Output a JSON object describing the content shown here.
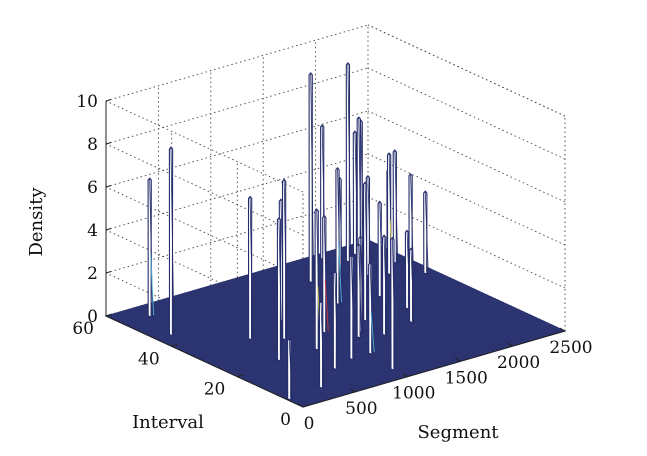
{
  "chart_data": {
    "type": "surface-3d",
    "title": "",
    "xlabel": "Segment",
    "ylabel": "Interval",
    "zlabel": "Density",
    "xlim": [
      0,
      2500
    ],
    "ylim": [
      0,
      60
    ],
    "zlim": [
      0,
      10
    ],
    "xticks": [
      "0",
      "500",
      "1000",
      "1500",
      "2000",
      "2500"
    ],
    "yticks": [
      "0",
      "20",
      "40",
      "60"
    ],
    "zticks": [
      "0",
      "2",
      "4",
      "6",
      "8",
      "10"
    ],
    "grid": true,
    "colors": {
      "floor": "#2b3470",
      "spike_fill": "#ffffff",
      "spike_edge": "#252d6b",
      "accent_yellow": "#d8cf4a",
      "accent_red": "#c63a3a",
      "accent_cyan": "#4fb4d0"
    },
    "peaks": [
      {
        "x": 150,
        "y": 45,
        "z": 8.7
      },
      {
        "x": 260,
        "y": 55,
        "z": 6.4
      },
      {
        "x": 25,
        "y": 5,
        "z": 2.8
      },
      {
        "x": 460,
        "y": 22,
        "z": 6.6
      },
      {
        "x": 360,
        "y": 6,
        "z": 4.0
      },
      {
        "x": 560,
        "y": 34,
        "z": 6.6
      },
      {
        "x": 760,
        "y": 30,
        "z": 7.4
      },
      {
        "x": 820,
        "y": 22,
        "z": 6.5
      },
      {
        "x": 1010,
        "y": 5,
        "z": 6.1
      },
      {
        "x": 980,
        "y": 38,
        "z": 5.6
      },
      {
        "x": 1080,
        "y": 28,
        "z": 5.4
      },
      {
        "x": 680,
        "y": 12,
        "z": 4.5
      },
      {
        "x": 900,
        "y": 14,
        "z": 4.8
      },
      {
        "x": 1080,
        "y": 14,
        "z": 4.2
      },
      {
        "x": 1220,
        "y": 22,
        "z": 4.3
      },
      {
        "x": 1640,
        "y": 50,
        "z": 9.7
      },
      {
        "x": 1660,
        "y": 36,
        "z": 8.6
      },
      {
        "x": 1520,
        "y": 38,
        "z": 6.3
      },
      {
        "x": 1470,
        "y": 28,
        "z": 6.4
      },
      {
        "x": 1400,
        "y": 20,
        "z": 4.6
      },
      {
        "x": 1300,
        "y": 24,
        "z": 4.4
      },
      {
        "x": 1720,
        "y": 22,
        "z": 3.4
      },
      {
        "x": 1790,
        "y": 46,
        "z": 4.9
      },
      {
        "x": 1780,
        "y": 40,
        "z": 4.5
      },
      {
        "x": 1840,
        "y": 48,
        "z": 3.9
      },
      {
        "x": 1860,
        "y": 36,
        "z": 4.4
      },
      {
        "x": 1870,
        "y": 28,
        "z": 3.6
      },
      {
        "x": 2000,
        "y": 58,
        "z": 6.2
      },
      {
        "x": 2060,
        "y": 46,
        "z": 4.6
      },
      {
        "x": 2120,
        "y": 54,
        "z": 9.2
      },
      {
        "x": 2180,
        "y": 52,
        "z": 6.6
      },
      {
        "x": 2200,
        "y": 44,
        "z": 5.6
      },
      {
        "x": 2250,
        "y": 56,
        "z": 5.7
      },
      {
        "x": 2280,
        "y": 40,
        "z": 4.8
      },
      {
        "x": 2320,
        "y": 48,
        "z": 4.4
      },
      {
        "x": 2380,
        "y": 48,
        "z": 5.2
      },
      {
        "x": 2420,
        "y": 40,
        "z": 3.8
      }
    ]
  }
}
